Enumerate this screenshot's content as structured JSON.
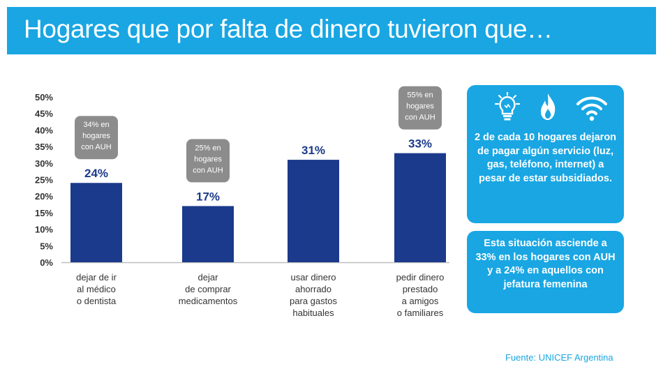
{
  "header": {
    "title": "Hogares que por falta de dinero tuvieron que…"
  },
  "chart_data": {
    "type": "bar",
    "categories": [
      [
        "dejar de ir",
        "al médico",
        "o dentista"
      ],
      [
        "dejar",
        "de comprar",
        "medicamentos"
      ],
      [
        "usar dinero",
        "ahorrado",
        "para gastos",
        "habituales"
      ],
      [
        "pedir dinero",
        "prestado",
        "a amigos",
        "o familiares"
      ]
    ],
    "values": [
      24,
      17,
      31,
      33
    ],
    "value_labels": [
      "24%",
      "17%",
      "31%",
      "33%"
    ],
    "ylim": [
      0,
      50
    ],
    "yticks": [
      "0%",
      "5%",
      "10%",
      "15%",
      "20%",
      "25%",
      "30%",
      "35%",
      "40%",
      "45%",
      "50%"
    ],
    "bar_color": "#1b3a8b",
    "callouts": [
      {
        "category_index": 0,
        "value": 34,
        "lines": [
          "34% en",
          "hogares",
          "con AUH"
        ]
      },
      {
        "category_index": 1,
        "value": 25,
        "lines": [
          "25% en",
          "hogares",
          "con AUH"
        ]
      },
      {
        "category_index": 3,
        "value": 55,
        "lines": [
          "55% en",
          "hogares",
          "con AUH"
        ]
      }
    ],
    "callout_color": "#8c8c8c",
    "title": "",
    "xlabel": "",
    "ylabel": ""
  },
  "panel_services": {
    "icons": [
      "lightbulb-icon",
      "flame-icon",
      "wifi-icon"
    ],
    "text": "2 de cada 10 hogares dejaron de pagar algún servicio (luz, gas, teléfono, internet) a pesar de estar subsidiados."
  },
  "panel_auh": {
    "text": "Esta situación asciende a 33% en los hogares con AUH y a 24% en aquellos con jefatura femenina"
  },
  "source": "Fuente: UNICEF Argentina",
  "colors": {
    "accent": "#19a6e3",
    "bar": "#1b3a8b",
    "callout": "#8c8c8c"
  }
}
